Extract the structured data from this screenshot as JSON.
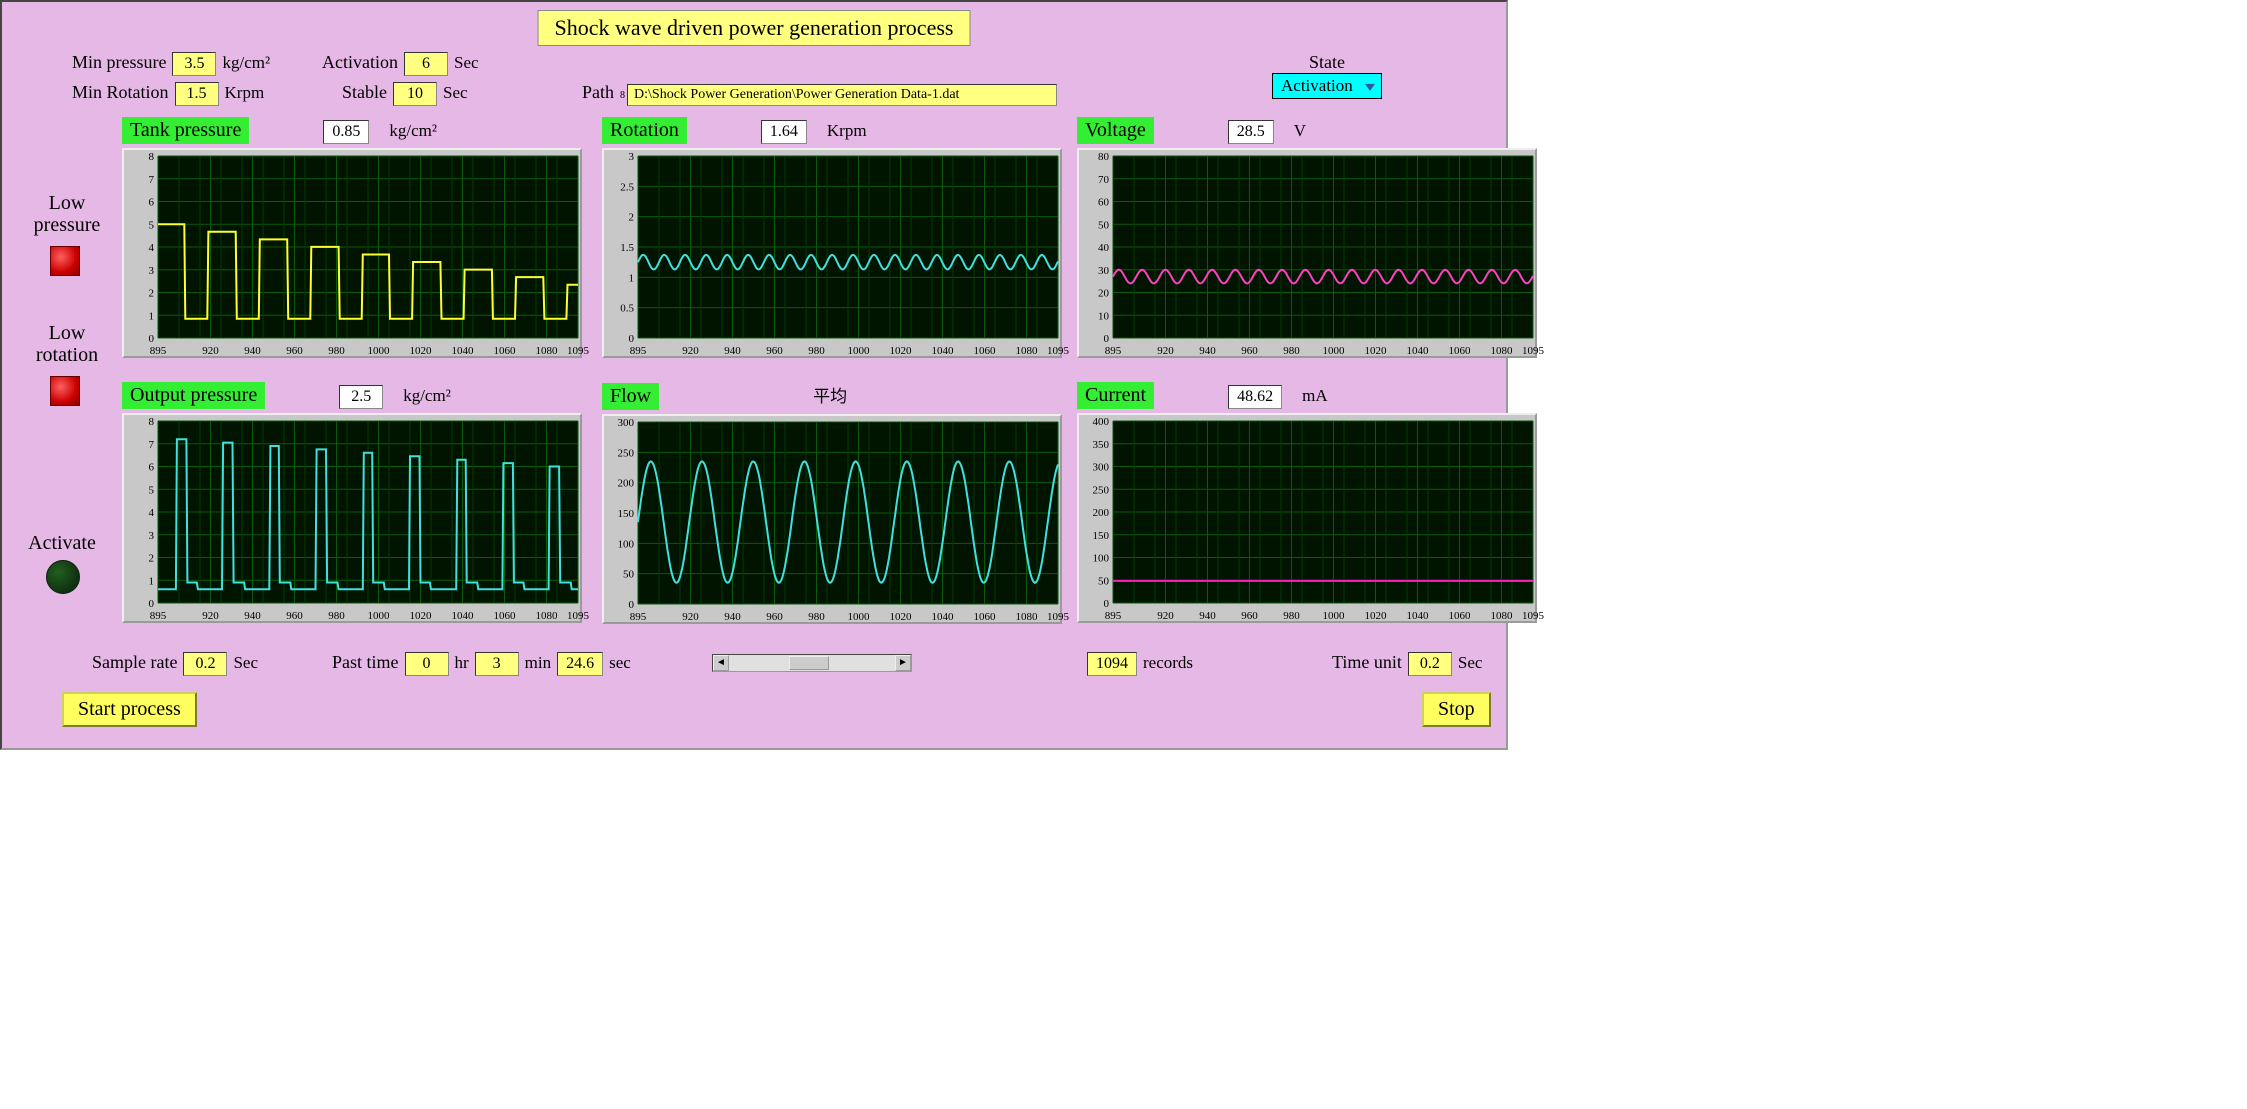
{
  "title": "Shock wave driven power generation process",
  "inputs": {
    "min_pressure": {
      "label": "Min pressure",
      "value": "3.5",
      "unit": "kg/cm²"
    },
    "min_rotation": {
      "label": "Min Rotation",
      "value": "1.5",
      "unit": "Krpm"
    },
    "activation": {
      "label": "Activation",
      "value": "6",
      "unit": "Sec"
    },
    "stable": {
      "label": "Stable",
      "value": "10",
      "unit": "Sec"
    }
  },
  "path": {
    "label": "Path",
    "value": "D:\\Shock Power Generation\\Power Generation Data-1.dat"
  },
  "state": {
    "label": "State",
    "value": "Activation"
  },
  "side": {
    "low_pressure": "Low\npressure",
    "low_rotation": "Low\nrotation",
    "activate": "Activate"
  },
  "bottom": {
    "sample_rate": {
      "label": "Sample rate",
      "value": "0.2",
      "unit": "Sec"
    },
    "past_time": {
      "label": "Past time",
      "hr": "0",
      "min": "3",
      "sec": "24.6"
    },
    "records": {
      "value": "1094",
      "label": "records"
    },
    "time_unit": {
      "label": "Time unit",
      "value": "0.2",
      "unit": "Sec"
    }
  },
  "buttons": {
    "start": "Start process",
    "stop": "Stop"
  },
  "x_axis": {
    "min": 895,
    "max": 1095,
    "ticks": [
      895,
      920,
      940,
      960,
      980,
      1000,
      1020,
      1040,
      1060,
      1080,
      1095
    ],
    "tick_labels": [
      "895",
      "920",
      "940",
      "960",
      "980",
      "1000",
      "1020",
      "1040",
      "1060",
      "1080",
      "1095"
    ],
    "tick_font": 11
  },
  "chart_style": {
    "bg": "#001400",
    "grid": "#0a5a0a",
    "grid_minor": "#053a05",
    "panel_bg": "#c8c8c8",
    "axis_text": "#000000"
  },
  "charts": {
    "tank_pressure": {
      "title": "Tank pressure",
      "value": "0.85",
      "unit": "kg/cm²",
      "ylim": [
        0,
        8
      ],
      "yticks": [
        0,
        1,
        2,
        3,
        4,
        5,
        6,
        7,
        8
      ],
      "color": "#ffff30",
      "line_width": 2,
      "type": "square_wave",
      "baseline": 0.85,
      "high": 5.0,
      "periods": 8.2,
      "phase_offset": 0.02,
      "duty": 0.55,
      "decay_per_period": 0.08
    },
    "rotation": {
      "title": "Rotation",
      "value": "1.64",
      "unit": "Krpm",
      "ylim": [
        0,
        3
      ],
      "yticks": [
        0,
        0.5,
        1,
        1.5,
        2,
        2.5,
        3
      ],
      "color": "#40e0e0",
      "line_width": 2,
      "type": "noisy_flat",
      "mean": 1.25,
      "amp": 0.08,
      "periods": 20
    },
    "voltage": {
      "title": "Voltage",
      "value": "28.5",
      "unit": "V",
      "ylim": [
        0,
        80
      ],
      "yticks": [
        0,
        10,
        20,
        30,
        40,
        50,
        60,
        70,
        80
      ],
      "color": "#ff40c0",
      "line_width": 2,
      "type": "noisy_flat",
      "mean": 27,
      "amp": 2,
      "periods": 18
    },
    "output_pressure": {
      "title": "Output pressure",
      "value": "2.5",
      "unit": "kg/cm²",
      "ylim": [
        0,
        8
      ],
      "yticks": [
        0,
        1,
        2,
        3,
        4,
        5,
        6,
        7,
        8
      ],
      "color": "#40e0e0",
      "line_width": 2,
      "type": "spikes",
      "baseline": 0.6,
      "spike_high": 7.2,
      "count": 9,
      "spike_width": 0.012,
      "step_after": 0.35
    },
    "flow": {
      "title": "Flow",
      "value_text": "平均",
      "unit": "",
      "ylim": [
        0,
        300
      ],
      "yticks": [
        0,
        50,
        100,
        150,
        200,
        250,
        300
      ],
      "color": "#40e0e0",
      "line_width": 2,
      "type": "sine",
      "mean": 135,
      "amp": 100,
      "periods": 8.2,
      "phase": 0.0,
      "clip_high": 240
    },
    "current": {
      "title": "Current",
      "value": "48.62",
      "unit": "mA",
      "ylim": [
        0,
        400
      ],
      "yticks": [
        0,
        50,
        100,
        150,
        200,
        250,
        300,
        350,
        400
      ],
      "color": "#ff20c0",
      "line_width": 2,
      "type": "flat",
      "level": 48.6
    }
  }
}
